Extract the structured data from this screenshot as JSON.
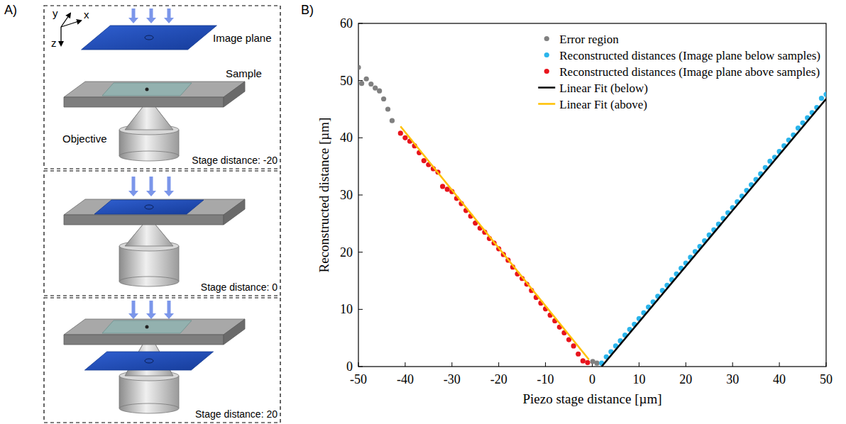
{
  "panel_labels": [
    "A)",
    "B)"
  ],
  "diagram": {
    "axes": [
      "x",
      "y",
      "z"
    ],
    "labels": {
      "image_plane": "Image plane",
      "sample": "Sample",
      "objective": "Objective"
    },
    "stages": [
      "Stage distance: -20",
      "Stage distance: 0",
      "Stage distance: 20"
    ]
  },
  "chart_data": {
    "type": "scatter",
    "x_label": "Piezo stage distance [µm]",
    "y_label": "Reconstructed  distance [µm]",
    "xlim": [
      -50,
      50
    ],
    "ylim": [
      0,
      60
    ],
    "xticks": [
      -50,
      -40,
      -30,
      -20,
      -10,
      0,
      10,
      20,
      30,
      40,
      50
    ],
    "yticks": [
      0,
      10,
      20,
      30,
      40,
      50,
      60
    ],
    "grid": false,
    "legend": "upper right",
    "series": [
      {
        "name": "Error region",
        "type": "scatter",
        "marker": "circle",
        "color": "#808080",
        "x": [
          -50,
          -49.3,
          -48.3,
          -47.3,
          -46.4,
          -45.5,
          -44.6,
          -43.7,
          -42.8,
          0.1,
          1.0
        ],
        "values": [
          52.3,
          49.5,
          50.3,
          49.4,
          48.7,
          48.2,
          46.8,
          45.0,
          43.0,
          0.9,
          0.6
        ]
      },
      {
        "name": "Reconstructed distances (Image plane below samples)",
        "type": "scatter",
        "marker": "circle",
        "color": "#2bb5ec",
        "x": [
          2,
          3,
          4,
          5,
          6,
          7,
          8,
          9,
          10,
          11,
          12,
          13,
          14,
          15,
          16,
          17,
          18,
          19,
          20,
          21,
          22,
          23,
          24,
          25,
          26,
          27,
          28,
          29,
          30,
          31,
          32,
          33,
          34,
          35,
          36,
          37,
          38,
          39,
          40,
          41,
          42,
          43,
          44,
          45,
          46,
          47,
          48,
          49,
          50
        ],
        "values": [
          0.6,
          1.7,
          2.6,
          3.6,
          4.5,
          5.5,
          6.5,
          7.4,
          8.4,
          9.4,
          10.4,
          11.3,
          12.3,
          13.3,
          14.2,
          15.2,
          16.2,
          17.2,
          18.1,
          19.1,
          20.1,
          21.0,
          22.0,
          23.0,
          23.9,
          24.9,
          25.9,
          26.9,
          27.8,
          28.8,
          29.8,
          30.8,
          31.8,
          32.7,
          33.7,
          34.8,
          35.9,
          36.6,
          37.6,
          38.6,
          39.6,
          40.5,
          41.7,
          42.6,
          43.5,
          44.4,
          45.3,
          46.9,
          47.6
        ]
      },
      {
        "name": "Reconstructed distances (Image plane above samples)",
        "type": "scatter",
        "marker": "circle",
        "color": "#e8141c",
        "x": [
          -41,
          -40,
          -39,
          -38,
          -37,
          -36,
          -35,
          -34,
          -33,
          -32,
          -31,
          -30,
          -29,
          -28,
          -27,
          -26,
          -25,
          -24,
          -23,
          -22,
          -21,
          -20,
          -19,
          -18,
          -17,
          -16,
          -15,
          -14,
          -13,
          -12,
          -11,
          -10,
          -9,
          -8,
          -7,
          -6,
          -5,
          -4,
          -3,
          -2,
          -1
        ],
        "values": [
          40.8,
          40.0,
          39.4,
          38.6,
          37.4,
          36.0,
          35.3,
          34.6,
          34.0,
          31.5,
          31.0,
          30.6,
          29.4,
          28.5,
          27.3,
          26.3,
          25.1,
          24.2,
          23.5,
          22.4,
          21.6,
          20.6,
          19.6,
          18.6,
          17.4,
          16.2,
          15.4,
          14.4,
          13.3,
          12.1,
          11.1,
          10.1,
          9.0,
          8.0,
          6.9,
          5.9,
          4.7,
          3.6,
          2.2,
          1.0,
          0.7
        ]
      },
      {
        "name": "Linear Fit (below)",
        "type": "line",
        "line_style": "solid",
        "color": "#000000",
        "x": [
          2,
          50
        ],
        "values": [
          0,
          46.8
        ]
      },
      {
        "name": "Linear Fit (above)",
        "type": "line",
        "line_style": "solid",
        "color": "#ffc000",
        "x": [
          -41,
          -0.7
        ],
        "values": [
          42.0,
          1.2
        ]
      }
    ]
  }
}
